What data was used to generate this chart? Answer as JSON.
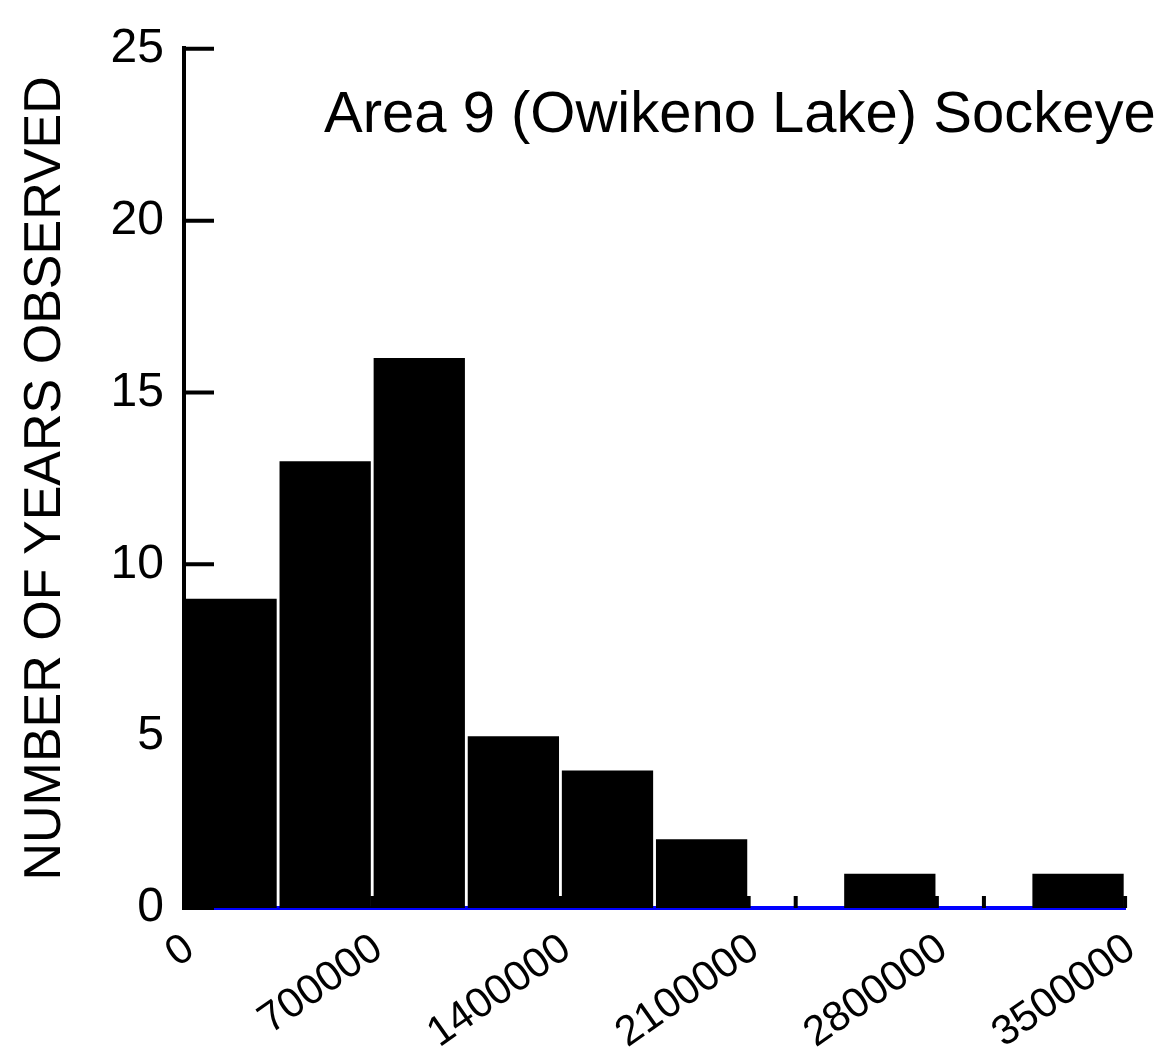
{
  "chart_data": {
    "type": "histogram",
    "title": "Area 9 (Owikeno Lake) Sockeye",
    "ylabel": "NUMBER OF YEARS OBSERVED",
    "bins": [
      0,
      350000,
      700000,
      1050000,
      1400000,
      1750000,
      2100000,
      2450000,
      2800000,
      3150000,
      3500000
    ],
    "values": [
      9,
      13,
      16,
      5,
      4,
      2,
      0,
      1,
      0,
      1
    ],
    "color": "#000000",
    "xlim": [
      0,
      3500000
    ],
    "xticks": [
      0,
      700000,
      1400000,
      2100000,
      {
        "value": 2275000,
        "label": null
      },
      2800000,
      {
        "value": 2975000,
        "label": null
      },
      3500000
    ],
    "ylim": [
      0,
      25
    ],
    "yticks": [
      0,
      5,
      10,
      15,
      20,
      25
    ]
  }
}
